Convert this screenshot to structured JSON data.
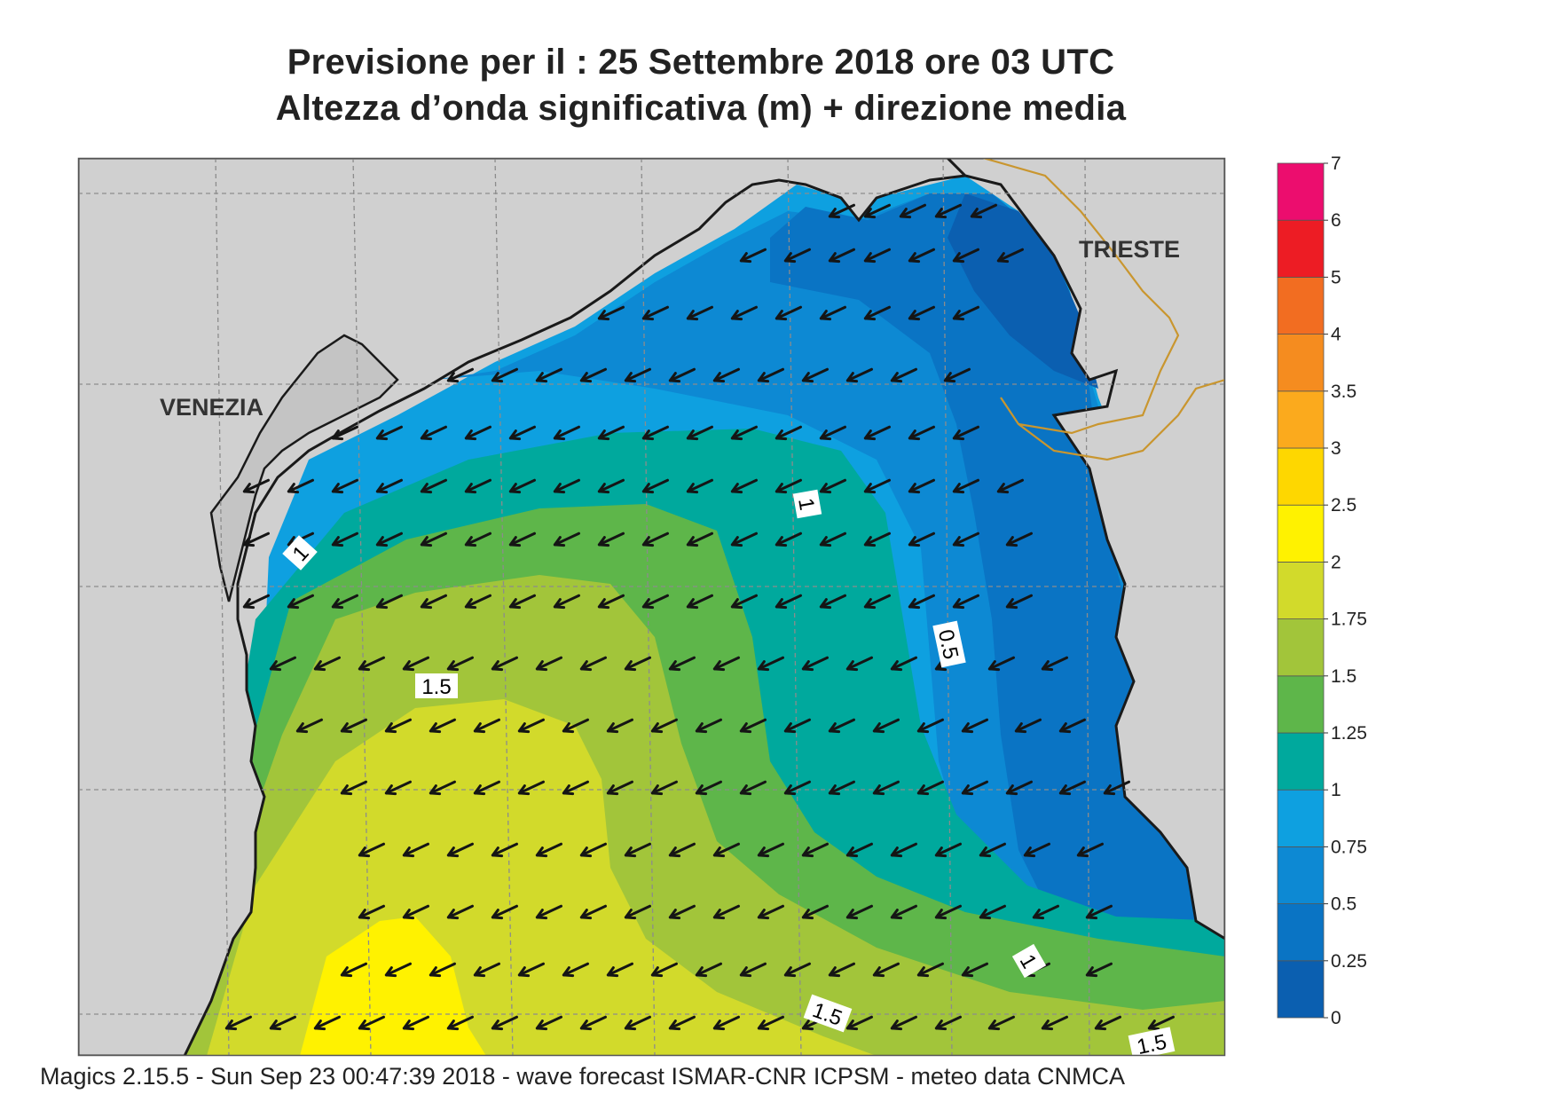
{
  "header": {
    "title_line1": "Previsione per il  :  25 Settembre 2018   ore 03 UTC",
    "title_line2": "Altezza d’onda significativa (m) + direzione media"
  },
  "map": {
    "cities": [
      {
        "name": "VENEZIA"
      },
      {
        "name": "TRIESTE"
      }
    ],
    "contour_labels": [
      "1",
      "1",
      "0.5",
      "1.5",
      "1",
      "1.5",
      "1.5"
    ],
    "colors": {
      "land": "#d0d0d0",
      "coast": "#1a1a1a",
      "border": "#c9962f",
      "grid": "#8c8c8c"
    }
  },
  "legend": {
    "ticks": [
      "7",
      "6",
      "5",
      "4",
      "3.5",
      "3",
      "2.5",
      "2",
      "1.75",
      "1.5",
      "1.25",
      "1",
      "0.75",
      "0.5",
      "0.25",
      "0"
    ],
    "colors": [
      "#0b5fb0",
      "#0a74c4",
      "#0d89d3",
      "#0ea0e0",
      "#00a99d",
      "#5eb64a",
      "#a2c53a",
      "#d2da2b",
      "#fff200",
      "#fed700",
      "#fbaa1d",
      "#f58c1f",
      "#f26d21",
      "#ed1c24",
      "#ec0d6e"
    ]
  },
  "footer": {
    "text": "Magics 2.15.5 - Sun Sep 23 00:47:39 2018 - wave forecast  ISMAR-CNR  ICPSM - meteo data   CNMCA"
  }
}
